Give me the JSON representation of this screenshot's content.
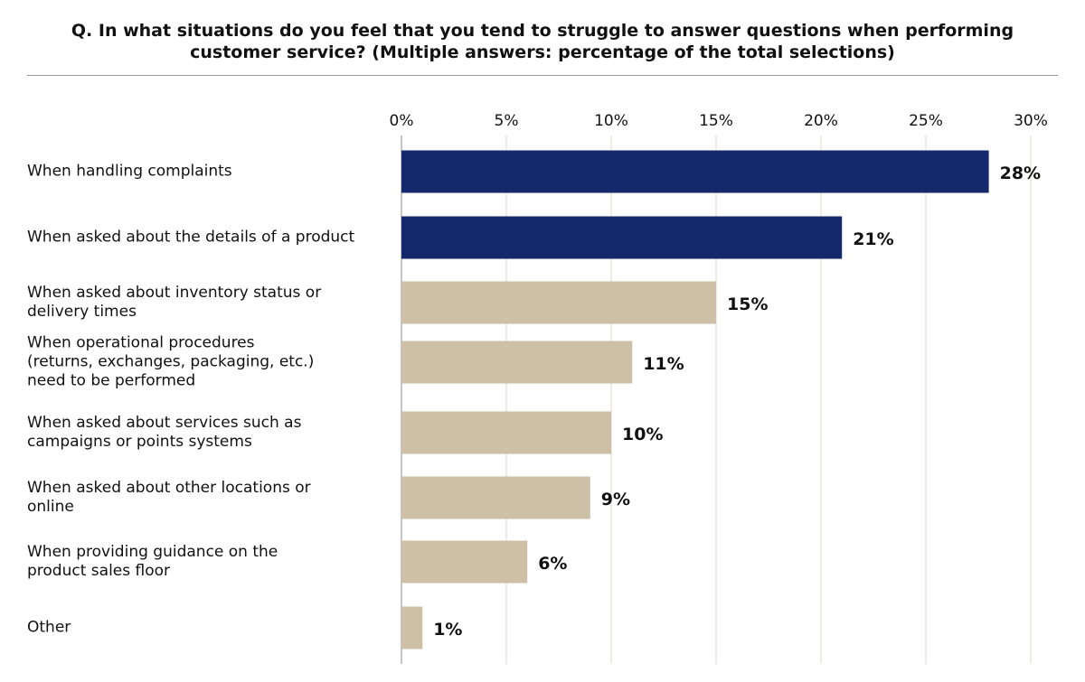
{
  "chart_data": {
    "type": "hbar",
    "title": "Q. In what situations do you feel that you tend to struggle to answer questions when performing\ncustomer service? (Multiple answers: percentage of the total selections)",
    "categories": [
      "When handling complaints",
      "When asked about the details of a product",
      "When asked about inventory status or\ndelivery times",
      "When operational procedures\n (returns, exchanges, packaging, etc.)\nneed to be performed",
      "When asked about services such as\ncampaigns or points systems",
      "When asked about other locations or\nonline",
      "When providing guidance on the\nproduct sales floor",
      "Other"
    ],
    "values": [
      28,
      21,
      15,
      11,
      10,
      9,
      6,
      1
    ],
    "value_labels": [
      "28%",
      "21%",
      "15%",
      "11%",
      "10%",
      "9%",
      "6%",
      "1%"
    ],
    "colors": [
      "#13296b",
      "#13296b",
      "#cdc0a6",
      "#cdc0a6",
      "#cdc0a6",
      "#cdc0a6",
      "#cdc0a6",
      "#cdc0a6"
    ],
    "xlim": [
      0,
      30
    ],
    "xticks": [
      {
        "value": 0,
        "label": "0%"
      },
      {
        "value": 5,
        "label": "5%"
      },
      {
        "value": 10,
        "label": "10%"
      },
      {
        "value": 15,
        "label": "15%"
      },
      {
        "value": 20,
        "label": "20%"
      },
      {
        "value": 25,
        "label": "25%"
      },
      {
        "value": 30,
        "label": "30%"
      }
    ],
    "grid": true
  }
}
